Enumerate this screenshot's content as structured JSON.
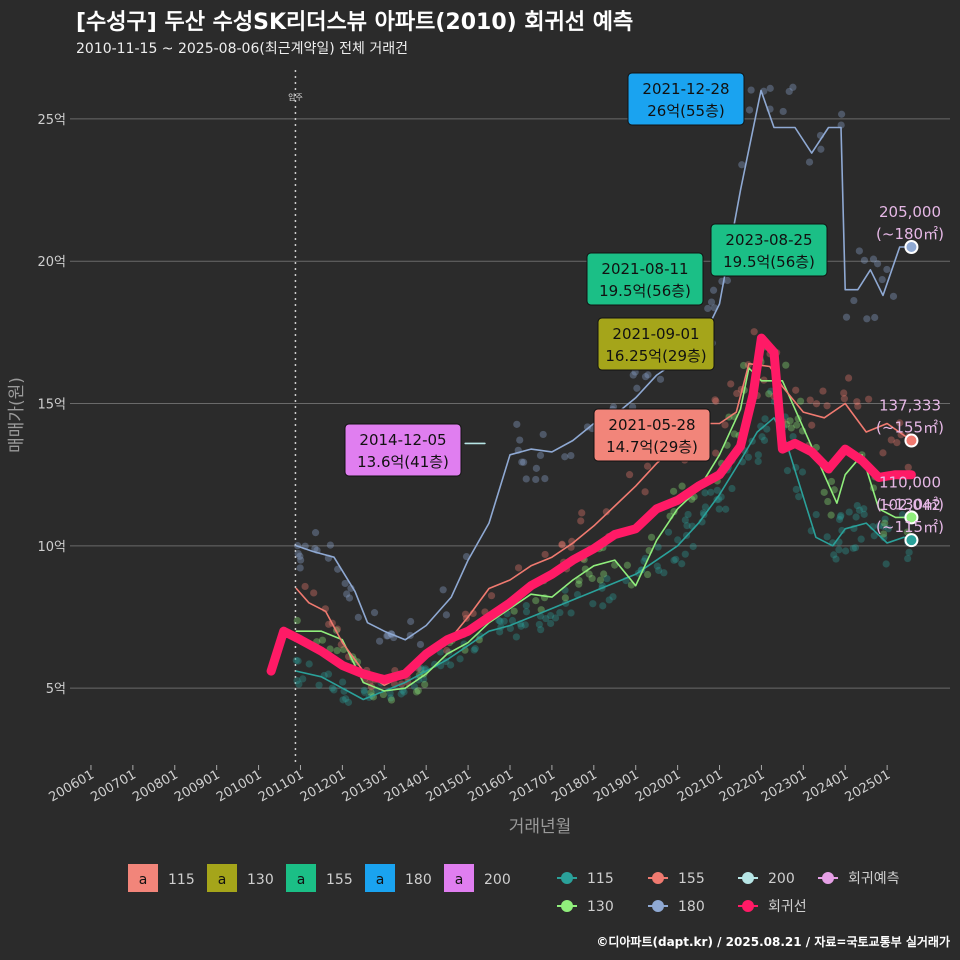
{
  "header": {
    "title": "[수성구] 두산 수성SK리더스뷰 아파트(2010) 회귀선 예측",
    "subtitle": "2010-11-15 ~ 2025-08-06(최근계약일) 전체 거래건"
  },
  "footer": {
    "credit": "©디아파트(dapt.kr) / 2025.08.21 / 자료=국토교통부 실거래가"
  },
  "chart_data": {
    "type": "line",
    "title": "[수성구] 두산 수성SK리더스뷰 아파트(2010) 회귀선 예측",
    "xlabel": "거래년월",
    "ylabel": "매매가(원)",
    "x_range": [
      2005.5,
      2026.5
    ],
    "ylim": [
      2.3,
      27.0
    ],
    "x_ticks": [
      "200601",
      "200701",
      "200801",
      "200901",
      "201001",
      "201101",
      "201201",
      "201301",
      "201401",
      "201501",
      "201601",
      "201701",
      "201801",
      "201901",
      "202001",
      "202101",
      "202201",
      "202301",
      "202401",
      "202501"
    ],
    "y_ticks": [
      {
        "value": 5,
        "label": "5억"
      },
      {
        "value": 10,
        "label": "10억"
      },
      {
        "value": 15,
        "label": "15억"
      },
      {
        "value": 20,
        "label": "20억"
      },
      {
        "value": 25,
        "label": "25억"
      }
    ],
    "move_in": {
      "x": 2010.88,
      "label": "입주"
    },
    "grid": true,
    "series": [
      {
        "name": "115",
        "color": "#2aa19a",
        "points": [
          [
            2010.9,
            5.6
          ],
          [
            2011.5,
            5.4
          ],
          [
            2012.0,
            5.0
          ],
          [
            2012.5,
            4.6
          ],
          [
            2013.0,
            4.9
          ],
          [
            2013.5,
            5.2
          ],
          [
            2014.0,
            5.6
          ],
          [
            2014.5,
            6.0
          ],
          [
            2015.0,
            6.5
          ],
          [
            2015.5,
            7.0
          ],
          [
            2016.0,
            7.2
          ],
          [
            2016.5,
            7.5
          ],
          [
            2017.0,
            7.8
          ],
          [
            2017.5,
            8.1
          ],
          [
            2018.0,
            8.4
          ],
          [
            2018.5,
            8.7
          ],
          [
            2019.0,
            9.0
          ],
          [
            2019.5,
            9.5
          ],
          [
            2020.0,
            10.0
          ],
          [
            2020.5,
            10.8
          ],
          [
            2021.0,
            11.8
          ],
          [
            2021.5,
            13.0
          ],
          [
            2021.9,
            14.0
          ],
          [
            2022.3,
            14.5
          ],
          [
            2022.6,
            13.6
          ],
          [
            2023.3,
            10.3
          ],
          [
            2023.7,
            10.0
          ],
          [
            2024.0,
            10.6
          ],
          [
            2024.5,
            10.8
          ],
          [
            2025.0,
            10.1
          ],
          [
            2025.4,
            10.3
          ],
          [
            2025.58,
            10.2
          ]
        ]
      },
      {
        "name": "130",
        "color": "#90ee7c",
        "points": [
          [
            2010.9,
            7.0
          ],
          [
            2011.5,
            7.0
          ],
          [
            2012.0,
            6.7
          ],
          [
            2012.5,
            5.2
          ],
          [
            2013.0,
            4.9
          ],
          [
            2013.5,
            5.0
          ],
          [
            2014.0,
            5.5
          ],
          [
            2014.5,
            6.2
          ],
          [
            2015.0,
            6.6
          ],
          [
            2015.5,
            7.3
          ],
          [
            2016.0,
            7.8
          ],
          [
            2016.5,
            8.3
          ],
          [
            2017.0,
            8.2
          ],
          [
            2017.5,
            8.8
          ],
          [
            2018.0,
            9.3
          ],
          [
            2018.5,
            9.5
          ],
          [
            2019.0,
            8.6
          ],
          [
            2019.5,
            10.2
          ],
          [
            2020.0,
            11.3
          ],
          [
            2020.5,
            12.0
          ],
          [
            2021.0,
            13.2
          ],
          [
            2021.5,
            14.8
          ],
          [
            2021.7,
            16.25
          ],
          [
            2022.0,
            15.8
          ],
          [
            2022.5,
            15.8
          ],
          [
            2023.8,
            11.5
          ],
          [
            2024.0,
            12.5
          ],
          [
            2024.4,
            13.2
          ],
          [
            2024.8,
            11.3
          ],
          [
            2025.2,
            11.0
          ],
          [
            2025.58,
            11.0
          ]
        ]
      },
      {
        "name": "155",
        "color": "#f07a70",
        "points": [
          [
            2010.9,
            8.5
          ],
          [
            2011.2,
            8.0
          ],
          [
            2011.6,
            7.7
          ],
          [
            2012.0,
            6.6
          ],
          [
            2012.5,
            5.6
          ],
          [
            2013.0,
            5.1
          ],
          [
            2013.4,
            5.4
          ],
          [
            2014.0,
            6.2
          ],
          [
            2014.5,
            6.6
          ],
          [
            2015.0,
            7.5
          ],
          [
            2015.5,
            8.5
          ],
          [
            2016.0,
            8.8
          ],
          [
            2016.5,
            9.3
          ],
          [
            2017.0,
            9.6
          ],
          [
            2017.5,
            10.1
          ],
          [
            2018.0,
            10.7
          ],
          [
            2018.5,
            11.4
          ],
          [
            2019.0,
            12.1
          ],
          [
            2019.5,
            12.9
          ],
          [
            2020.0,
            13.5
          ],
          [
            2020.5,
            14.3
          ],
          [
            2021.0,
            14.3
          ],
          [
            2021.4,
            14.7
          ],
          [
            2021.7,
            16.4
          ],
          [
            2022.2,
            16.3
          ],
          [
            2022.5,
            15.6
          ],
          [
            2023.0,
            14.7
          ],
          [
            2023.5,
            14.5
          ],
          [
            2024.0,
            15.0
          ],
          [
            2024.5,
            14.0
          ],
          [
            2025.0,
            14.3
          ],
          [
            2025.58,
            13.7
          ]
        ]
      },
      {
        "name": "180",
        "color": "#8fa9d3",
        "points": [
          [
            2010.9,
            10.0
          ],
          [
            2011.3,
            9.8
          ],
          [
            2011.8,
            9.6
          ],
          [
            2012.3,
            8.4
          ],
          [
            2012.6,
            7.3
          ],
          [
            2013.0,
            7.0
          ],
          [
            2013.5,
            6.7
          ],
          [
            2014.0,
            7.2
          ],
          [
            2014.6,
            8.2
          ],
          [
            2015.0,
            9.5
          ],
          [
            2015.5,
            10.8
          ],
          [
            2016.0,
            13.2
          ],
          [
            2016.5,
            13.4
          ],
          [
            2017.0,
            13.3
          ],
          [
            2017.5,
            13.7
          ],
          [
            2018.0,
            14.3
          ],
          [
            2018.5,
            14.6
          ],
          [
            2019.0,
            15.2
          ],
          [
            2019.5,
            16.0
          ],
          [
            2020.0,
            16.5
          ],
          [
            2020.5,
            17.0
          ],
          [
            2021.0,
            18.5
          ],
          [
            2021.5,
            22.5
          ],
          [
            2021.99,
            26.0
          ],
          [
            2022.3,
            24.7
          ],
          [
            2022.8,
            24.7
          ],
          [
            2023.2,
            23.8
          ],
          [
            2023.6,
            24.7
          ],
          [
            2023.9,
            24.7
          ],
          [
            2024.0,
            19.0
          ],
          [
            2024.3,
            19.0
          ],
          [
            2024.6,
            19.7
          ],
          [
            2024.9,
            18.8
          ],
          [
            2025.3,
            20.5
          ],
          [
            2025.58,
            20.5
          ]
        ]
      },
      {
        "name": "200",
        "color": "#b7e6e6",
        "points": [
          [
            2014.93,
            13.6
          ],
          [
            2015.4,
            13.6
          ]
        ]
      },
      {
        "name": "회귀선",
        "color": "#ff1a66",
        "points": [
          [
            2010.3,
            5.6
          ],
          [
            2010.6,
            7.0
          ],
          [
            2011.0,
            6.7
          ],
          [
            2011.5,
            6.3
          ],
          [
            2012.0,
            5.8
          ],
          [
            2012.5,
            5.5
          ],
          [
            2013.0,
            5.3
          ],
          [
            2013.5,
            5.5
          ],
          [
            2014.0,
            6.2
          ],
          [
            2014.5,
            6.7
          ],
          [
            2015.0,
            7.0
          ],
          [
            2015.5,
            7.5
          ],
          [
            2016.0,
            8.0
          ],
          [
            2016.5,
            8.6
          ],
          [
            2017.0,
            9.0
          ],
          [
            2017.5,
            9.5
          ],
          [
            2018.0,
            9.9
          ],
          [
            2018.5,
            10.4
          ],
          [
            2019.0,
            10.6
          ],
          [
            2019.5,
            11.3
          ],
          [
            2020.0,
            11.6
          ],
          [
            2020.5,
            12.1
          ],
          [
            2021.0,
            12.5
          ],
          [
            2021.5,
            13.5
          ],
          [
            2021.8,
            15.3
          ],
          [
            2022.0,
            17.3
          ],
          [
            2022.3,
            16.8
          ],
          [
            2022.5,
            13.4
          ],
          [
            2022.8,
            13.6
          ],
          [
            2023.2,
            13.3
          ],
          [
            2023.6,
            12.7
          ],
          [
            2024.0,
            13.4
          ],
          [
            2024.4,
            13.0
          ],
          [
            2024.8,
            12.4
          ],
          [
            2025.2,
            12.5
          ],
          [
            2025.58,
            12.5
          ]
        ]
      }
    ],
    "predictions": [
      {
        "size": "180",
        "value": "205,000",
        "area": "(~180㎡)",
        "y": 20.5,
        "color": "#8fa9d3"
      },
      {
        "size": "155",
        "value": "137,333",
        "area": "(~155㎡)",
        "y": 13.7,
        "color": "#f07a70"
      },
      {
        "size": "130",
        "value": "110,000",
        "area": "(~130㎡)",
        "y": 11.0,
        "color": "#90ee7c"
      },
      {
        "size": "115",
        "value": "102,042",
        "area": "(~115㎡)",
        "y": 10.2,
        "color": "#2aa19a"
      }
    ],
    "annotations": [
      {
        "size": "180",
        "date": "2021-12-28",
        "text": "26억(55층)",
        "x": 2021.99,
        "y": 26.0,
        "bg": "#1aa3f0"
      },
      {
        "size": "155",
        "date": "2023-08-25",
        "text": "19.5억(56층)",
        "x": 2022.6,
        "y": 19.5,
        "bg": "#1bbf86"
      },
      {
        "size": "155",
        "date": "2021-08-11",
        "text": "19.5억(56층)",
        "x": 2021.6,
        "y": 19.5,
        "bg": "#1bbf86"
      },
      {
        "size": "130",
        "date": "2021-09-01",
        "text": "16.25억(29층)",
        "x": 2021.67,
        "y": 16.25,
        "bg": "#a5a51a"
      },
      {
        "size": "115",
        "date": "2021-05-28",
        "text": "14.7억(29층)",
        "x": 2021.4,
        "y": 14.7,
        "bg": "#f2857a"
      },
      {
        "size": "200",
        "date": "2014-12-05",
        "text": "13.6억(41층)",
        "x": 2014.93,
        "y": 13.6,
        "bg": "#e07ef0"
      }
    ],
    "legend_label_boxes": [
      {
        "label": "115",
        "color": "#f2857a"
      },
      {
        "label": "130",
        "color": "#a5a51a"
      },
      {
        "label": "155",
        "color": "#1bbf86"
      },
      {
        "label": "180",
        "color": "#1aa3f0"
      },
      {
        "label": "200",
        "color": "#e07ef0"
      }
    ],
    "legend_lines": [
      {
        "label": "115",
        "color": "#2aa19a"
      },
      {
        "label": "155",
        "color": "#f07a70"
      },
      {
        "label": "200",
        "color": "#b7e6e6"
      },
      {
        "label": "회귀예측",
        "color": "#e6a0e6"
      },
      {
        "label": "130",
        "color": "#90ee7c"
      },
      {
        "label": "180",
        "color": "#8fa9d3"
      },
      {
        "label": "회귀선",
        "color": "#ff1a66"
      }
    ],
    "legend_glyph": "a",
    "legend_position": "bottom"
  }
}
